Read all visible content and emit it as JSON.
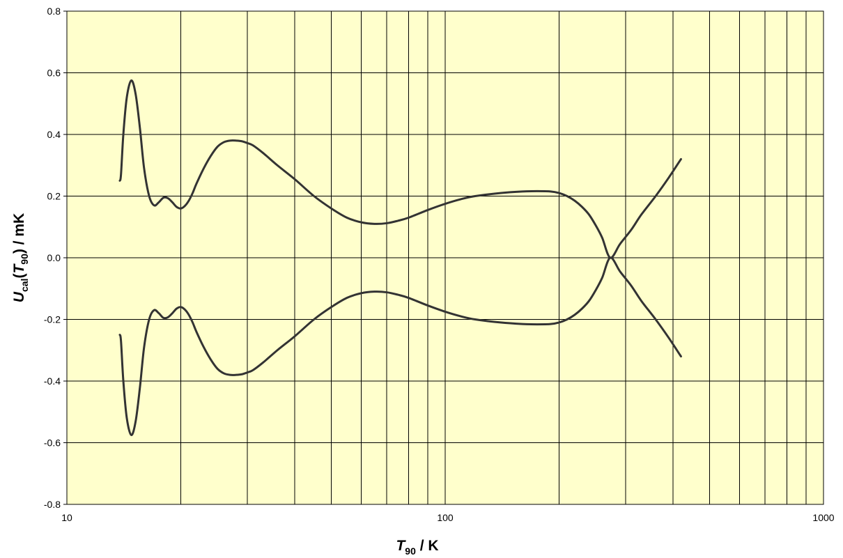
{
  "chart_data": {
    "type": "line",
    "x_scale": "log",
    "xlim": [
      10,
      1000
    ],
    "ylim": [
      -0.8,
      0.8
    ],
    "grid": true,
    "legend": "none",
    "x_ticks": [
      "10",
      "100",
      "1000"
    ],
    "x_minor_ticks": [
      20,
      30,
      40,
      50,
      60,
      70,
      80,
      90,
      200,
      300,
      400,
      500,
      600,
      700,
      800,
      900
    ],
    "y_ticks": [
      "0.8",
      "0.6",
      "0.4",
      "0.2",
      "0.0",
      "-0.2",
      "-0.4",
      "-0.6",
      "-0.8"
    ],
    "y_tick_values": [
      0.8,
      0.6,
      0.4,
      0.2,
      0.0,
      -0.2,
      -0.4,
      -0.6,
      -0.8
    ],
    "xlabel": {
      "italic": "T",
      "sub": "90",
      "rest": " / K"
    },
    "ylabel": {
      "italic1": "U",
      "sub1": "cal",
      "open": "(",
      "italic2": "T",
      "sub2": "90",
      "rest": ") / mK"
    },
    "series": [
      {
        "x": [
          13.8,
          13.9,
          14.1,
          14.4,
          14.8,
          15.2,
          15.6,
          16.0,
          16.5,
          17.0,
          17.5,
          18.0,
          18.5,
          19.0,
          19.5,
          20.0,
          20.5,
          21.0,
          21.5,
          22.0,
          23.0,
          24.0,
          25.0,
          26.0,
          27.0,
          28.0,
          29.0,
          30.0,
          31.0,
          33.0,
          36.0,
          40.0,
          45.0,
          50.0,
          55.0,
          60.0,
          65.0,
          70.0,
          75.0,
          80.0,
          90.0,
          100.0,
          110.0,
          120.0,
          140.0,
          160.0,
          175.0,
          190.0,
          200.0,
          210.0,
          220.0,
          230.0,
          240.0,
          250.0,
          260.0,
          273.16,
          290.0,
          310.0,
          330.0,
          360.0,
          390.0,
          420.0
        ],
        "values": [
          0.25,
          0.27,
          0.4,
          0.52,
          0.575,
          0.53,
          0.42,
          0.29,
          0.2,
          0.17,
          0.18,
          0.195,
          0.193,
          0.18,
          0.165,
          0.16,
          0.168,
          0.185,
          0.21,
          0.24,
          0.29,
          0.33,
          0.36,
          0.375,
          0.38,
          0.38,
          0.378,
          0.372,
          0.365,
          0.34,
          0.3,
          0.255,
          0.2,
          0.16,
          0.13,
          0.115,
          0.11,
          0.112,
          0.12,
          0.13,
          0.155,
          0.175,
          0.19,
          0.2,
          0.21,
          0.215,
          0.216,
          0.215,
          0.21,
          0.2,
          0.185,
          0.165,
          0.14,
          0.105,
          0.065,
          0.0,
          0.045,
          0.09,
          0.14,
          0.2,
          0.26,
          0.32
        ]
      },
      {
        "x": [
          13.8,
          13.9,
          14.1,
          14.4,
          14.8,
          15.2,
          15.6,
          16.0,
          16.5,
          17.0,
          17.5,
          18.0,
          18.5,
          19.0,
          19.5,
          20.0,
          20.5,
          21.0,
          21.5,
          22.0,
          23.0,
          24.0,
          25.0,
          26.0,
          27.0,
          28.0,
          29.0,
          30.0,
          31.0,
          33.0,
          36.0,
          40.0,
          45.0,
          50.0,
          55.0,
          60.0,
          65.0,
          70.0,
          75.0,
          80.0,
          90.0,
          100.0,
          110.0,
          120.0,
          140.0,
          160.0,
          175.0,
          190.0,
          200.0,
          210.0,
          220.0,
          230.0,
          240.0,
          250.0,
          260.0,
          273.16,
          290.0,
          310.0,
          330.0,
          360.0,
          390.0,
          420.0
        ],
        "values": [
          -0.25,
          -0.27,
          -0.4,
          -0.52,
          -0.575,
          -0.53,
          -0.42,
          -0.29,
          -0.2,
          -0.17,
          -0.18,
          -0.195,
          -0.193,
          -0.18,
          -0.165,
          -0.16,
          -0.168,
          -0.185,
          -0.21,
          -0.24,
          -0.29,
          -0.33,
          -0.36,
          -0.375,
          -0.38,
          -0.38,
          -0.378,
          -0.372,
          -0.365,
          -0.34,
          -0.3,
          -0.255,
          -0.2,
          -0.16,
          -0.13,
          -0.115,
          -0.11,
          -0.112,
          -0.12,
          -0.13,
          -0.155,
          -0.175,
          -0.19,
          -0.2,
          -0.21,
          -0.215,
          -0.216,
          -0.215,
          -0.21,
          -0.2,
          -0.185,
          -0.165,
          -0.14,
          -0.105,
          -0.065,
          0.0,
          -0.045,
          -0.09,
          -0.14,
          -0.2,
          -0.26,
          -0.32
        ]
      }
    ],
    "colors": {
      "plot_background": "#ffffcc",
      "grid": "#000000",
      "line": "#333333"
    }
  }
}
